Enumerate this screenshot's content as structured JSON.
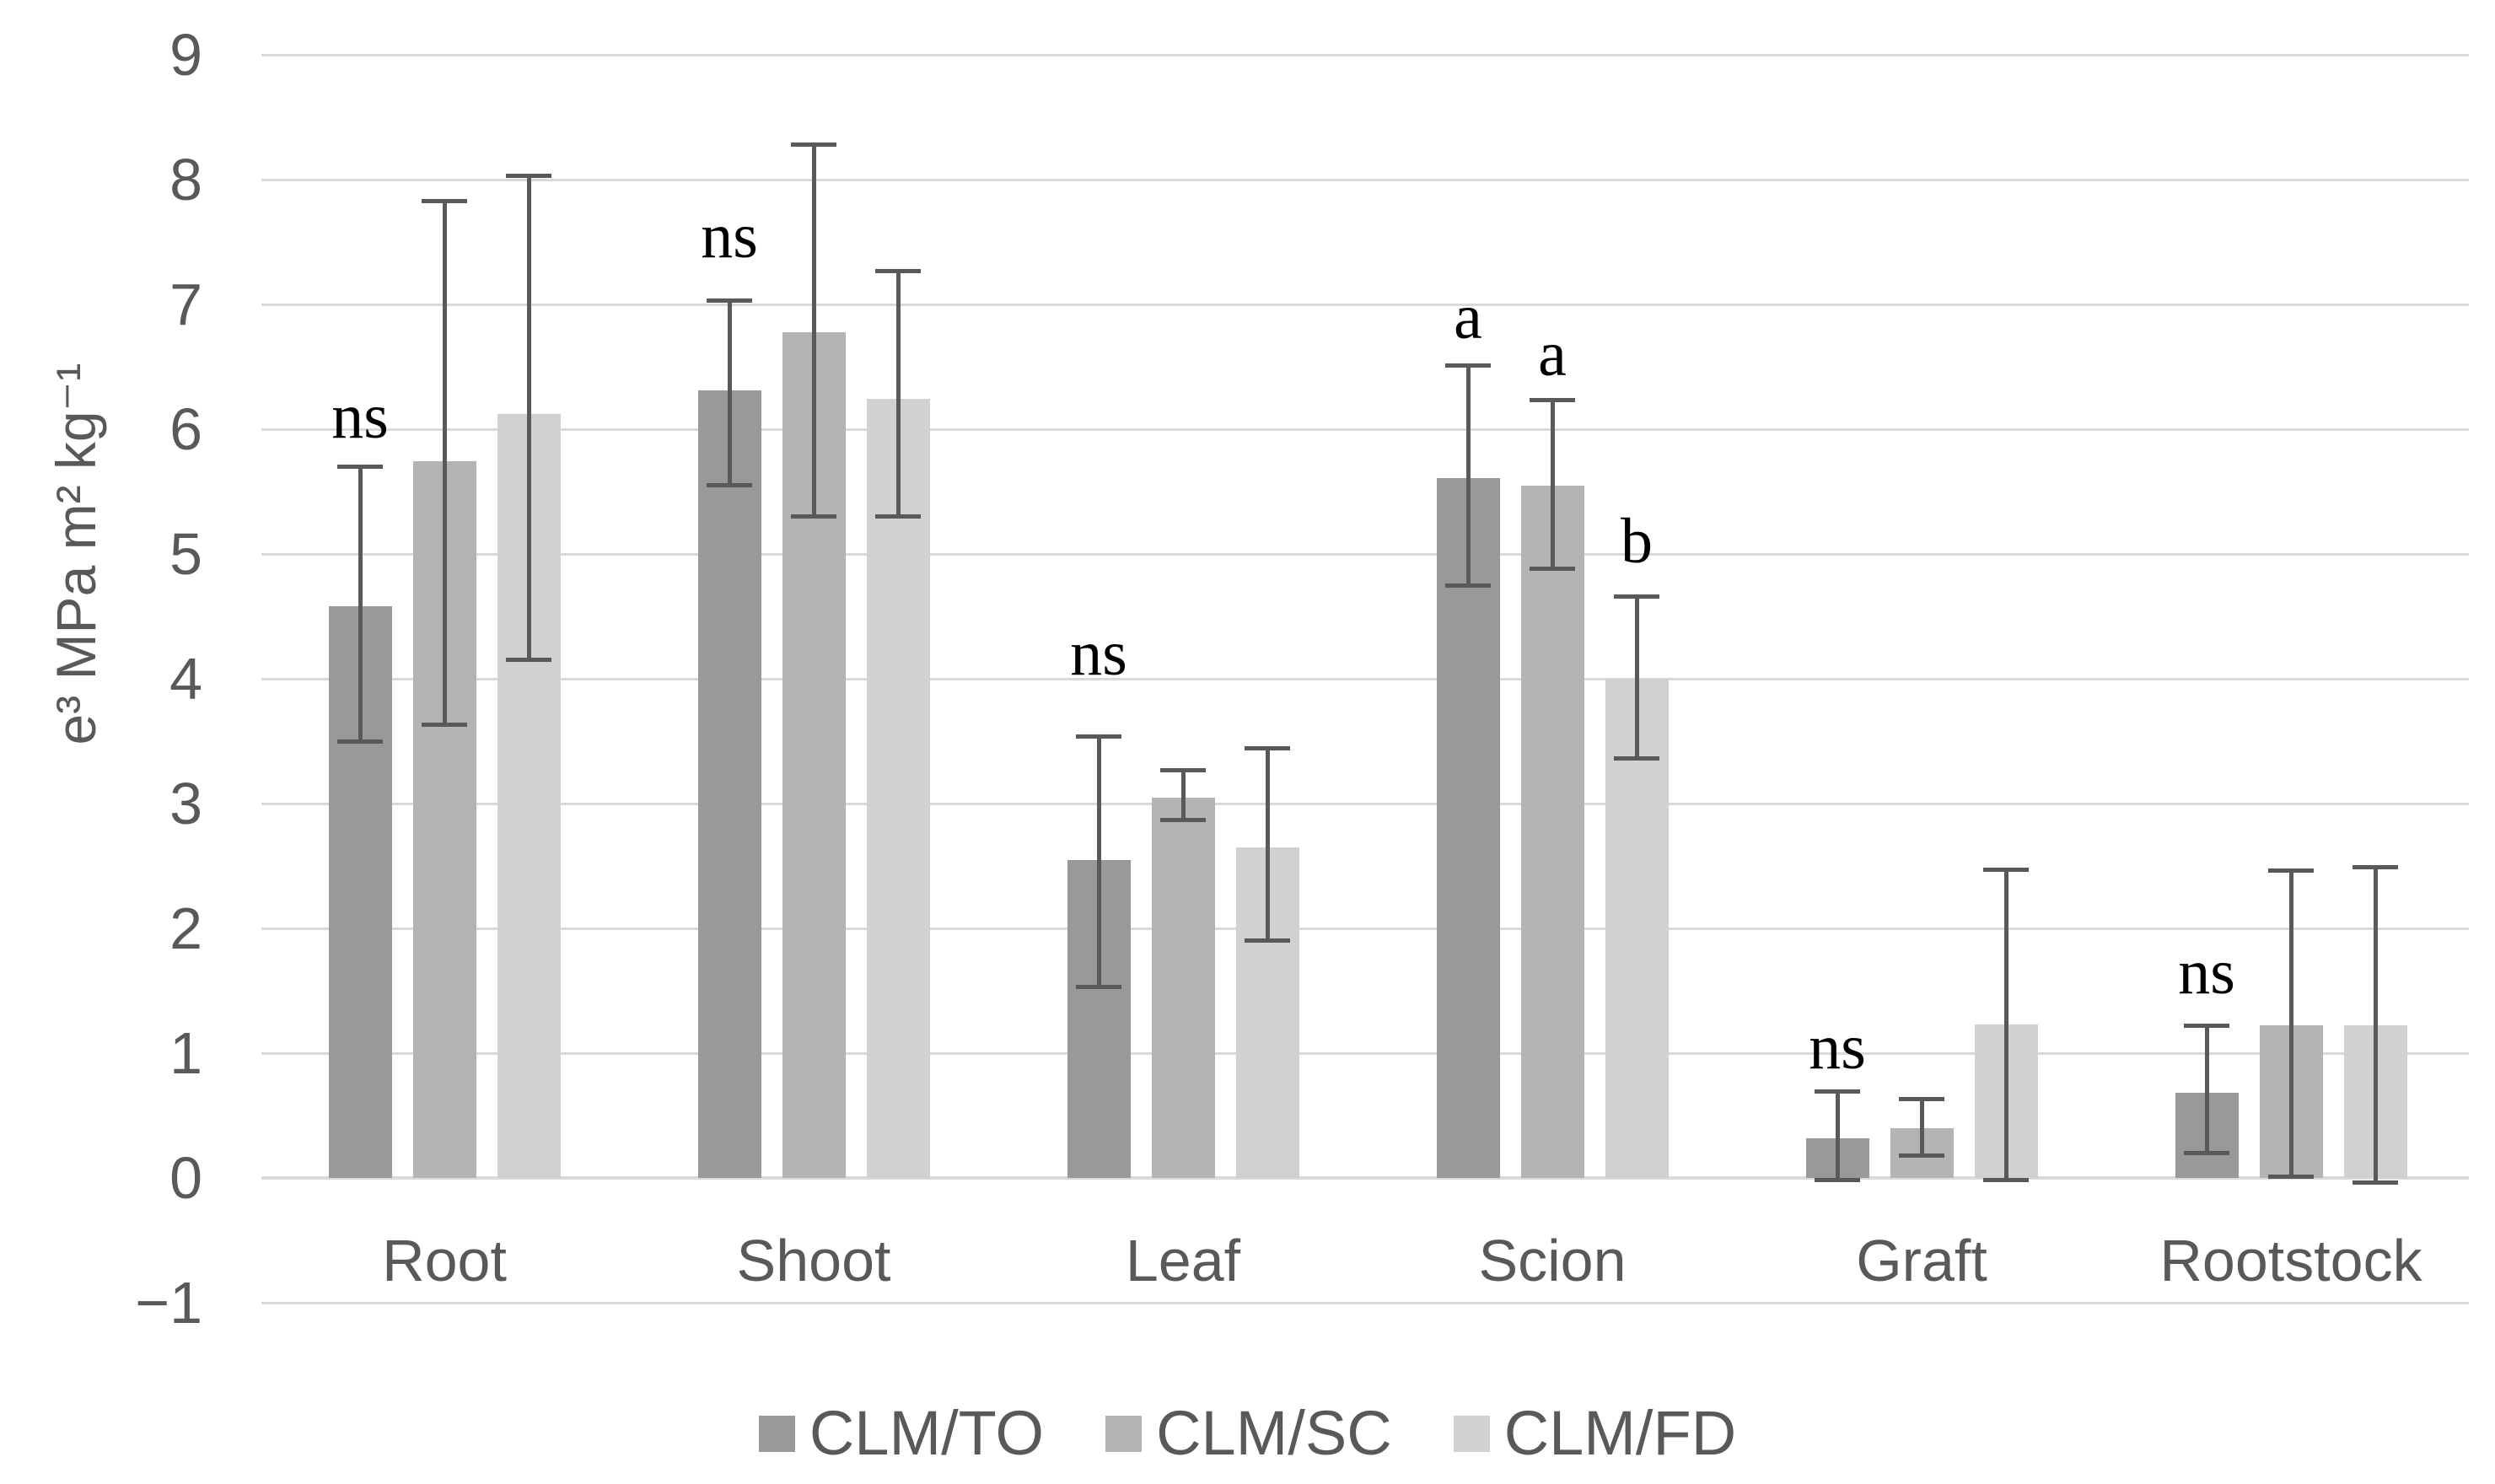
{
  "figure": {
    "background": "#ffffff",
    "grid_color": "#d9d9d9",
    "axis_text_color": "#595959",
    "error_bar_color": "#595959",
    "annotation_color": "#000000"
  },
  "chart_data": {
    "type": "bar",
    "title": "",
    "xlabel": "",
    "ylabel": "e³ MPa m² kg⁻¹",
    "ylim": [
      -1,
      9
    ],
    "yticks": [
      9,
      8,
      7,
      6,
      5,
      4,
      3,
      2,
      1,
      0,
      -1
    ],
    "grid": true,
    "legend_position": "bottom",
    "categories": [
      "Root",
      "Shoot",
      "Leaf",
      "Scion",
      "Graft",
      "Rootstock"
    ],
    "series": [
      {
        "name": "CLM/TO",
        "color": "#999999",
        "values": [
          4.58,
          6.31,
          2.55,
          5.61,
          0.32,
          0.68
        ],
        "err_lo": [
          3.5,
          5.55,
          1.53,
          4.75,
          -0.02,
          0.2
        ],
        "err_hi": [
          5.7,
          7.03,
          3.54,
          6.51,
          0.69,
          1.22
        ]
      },
      {
        "name": "CLM/SC",
        "color": "#b3b3b3",
        "values": [
          5.74,
          6.78,
          3.05,
          5.55,
          0.4,
          1.22
        ],
        "err_lo": [
          3.63,
          5.3,
          2.87,
          4.88,
          0.18,
          0.01
        ],
        "err_hi": [
          7.83,
          8.28,
          3.27,
          6.23,
          0.63,
          2.46
        ]
      },
      {
        "name": "CLM/FD",
        "color": "#d1d1d1",
        "values": [
          6.12,
          6.24,
          2.65,
          4.0,
          1.23,
          1.22
        ],
        "err_lo": [
          4.15,
          5.3,
          1.9,
          3.36,
          -0.02,
          -0.04
        ],
        "err_hi": [
          8.03,
          7.27,
          3.44,
          4.66,
          2.47,
          2.49
        ]
      }
    ],
    "annotations": [
      {
        "category": "Root",
        "series": "CLM/TO",
        "text": "ns",
        "y": 6.1
      },
      {
        "category": "Shoot",
        "series": "CLM/TO",
        "text": "ns",
        "y": 7.55
      },
      {
        "category": "Leaf",
        "series": "CLM/TO",
        "text": "ns",
        "y": 4.2
      },
      {
        "category": "Scion",
        "series": "CLM/TO",
        "text": "a",
        "y": 6.9
      },
      {
        "category": "Scion",
        "series": "CLM/SC",
        "text": "a",
        "y": 6.6
      },
      {
        "category": "Scion",
        "series": "CLM/FD",
        "text": "b",
        "y": 5.1
      },
      {
        "category": "Graft",
        "series": "CLM/TO",
        "text": "ns",
        "y": 1.05
      },
      {
        "category": "Rootstock",
        "series": "CLM/TO",
        "text": "ns",
        "y": 1.65
      }
    ]
  }
}
